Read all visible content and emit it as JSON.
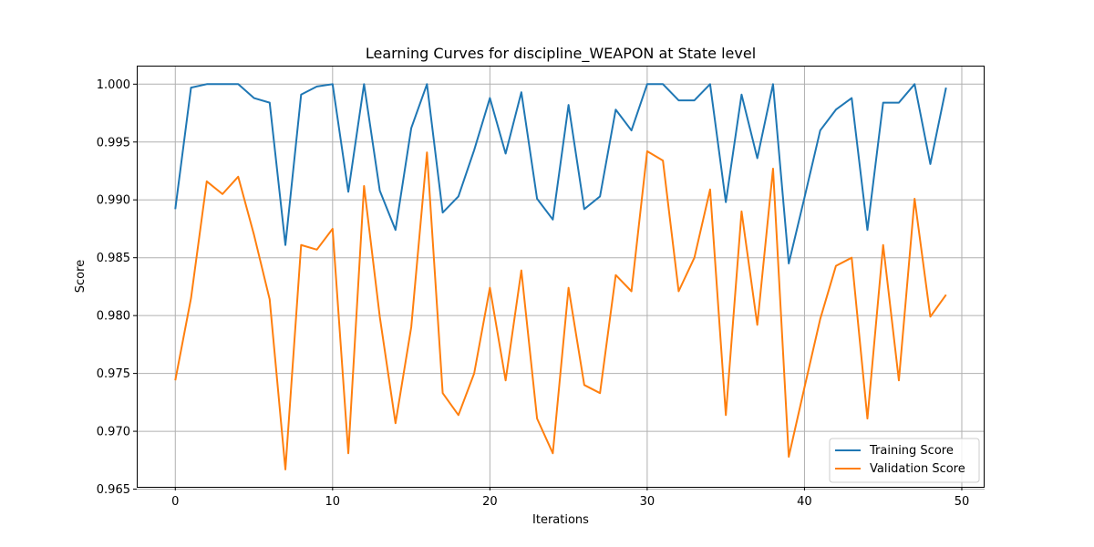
{
  "chart_data": {
    "type": "line",
    "title": "Learning Curves for discipline_WEAPON at State level",
    "xlabel": "Iterations",
    "ylabel": "Score",
    "xlim": [
      -2.45,
      51.45
    ],
    "ylim": [
      0.9652,
      1.0016
    ],
    "xticks": [
      0,
      10,
      20,
      30,
      40,
      50
    ],
    "yticks": [
      0.965,
      0.97,
      0.975,
      0.98,
      0.985,
      0.99,
      0.995,
      1.0
    ],
    "ytick_labels": [
      "0.965",
      "0.970",
      "0.975",
      "0.980",
      "0.985",
      "0.990",
      "0.995",
      "1.000"
    ],
    "grid": true,
    "legend_position": "lower-right",
    "x": [
      0,
      1,
      2,
      3,
      4,
      5,
      6,
      7,
      8,
      9,
      10,
      11,
      12,
      13,
      14,
      15,
      16,
      17,
      18,
      19,
      20,
      21,
      22,
      23,
      24,
      25,
      26,
      27,
      28,
      29,
      30,
      31,
      32,
      33,
      34,
      35,
      36,
      37,
      38,
      39,
      40,
      41,
      42,
      43,
      44,
      45,
      46,
      47,
      48,
      49
    ],
    "series": [
      {
        "name": "Training Score",
        "color": "#1f77b4",
        "values": [
          0.9892,
          0.9997,
          1.0,
          1.0,
          1.0,
          0.9988,
          0.9984,
          0.9861,
          0.9991,
          0.9998,
          1.0,
          0.9907,
          1.0,
          0.9908,
          0.9874,
          0.9962,
          1.0,
          0.9889,
          0.9903,
          0.9943,
          0.9988,
          0.994,
          0.9993,
          0.9901,
          0.9883,
          0.9982,
          0.9892,
          0.9903,
          0.9978,
          0.996,
          1.0,
          1.0,
          0.9986,
          0.9986,
          1.0,
          0.9898,
          0.9991,
          0.9936,
          1.0,
          0.9845,
          0.9902,
          0.996,
          0.9978,
          0.9988,
          0.9874,
          0.9984,
          0.9984,
          1.0,
          0.9931,
          0.9997
        ]
      },
      {
        "name": "Validation Score",
        "color": "#ff7f0e",
        "values": [
          0.9744,
          0.9815,
          0.9916,
          0.9905,
          0.992,
          0.987,
          0.9814,
          0.9667,
          0.9861,
          0.9857,
          0.9875,
          0.9681,
          0.9912,
          0.9799,
          0.9707,
          0.979,
          0.9941,
          0.9733,
          0.9714,
          0.975,
          0.9824,
          0.9744,
          0.9839,
          0.9711,
          0.9681,
          0.9824,
          0.974,
          0.9733,
          0.9835,
          0.9821,
          0.9942,
          0.9934,
          0.9821,
          0.985,
          0.9909,
          0.9714,
          0.989,
          0.9792,
          0.9927,
          0.9678,
          0.9738,
          0.9797,
          0.9843,
          0.985,
          0.9711,
          0.9861,
          0.9744,
          0.9901,
          0.9799,
          0.9818
        ]
      }
    ]
  }
}
